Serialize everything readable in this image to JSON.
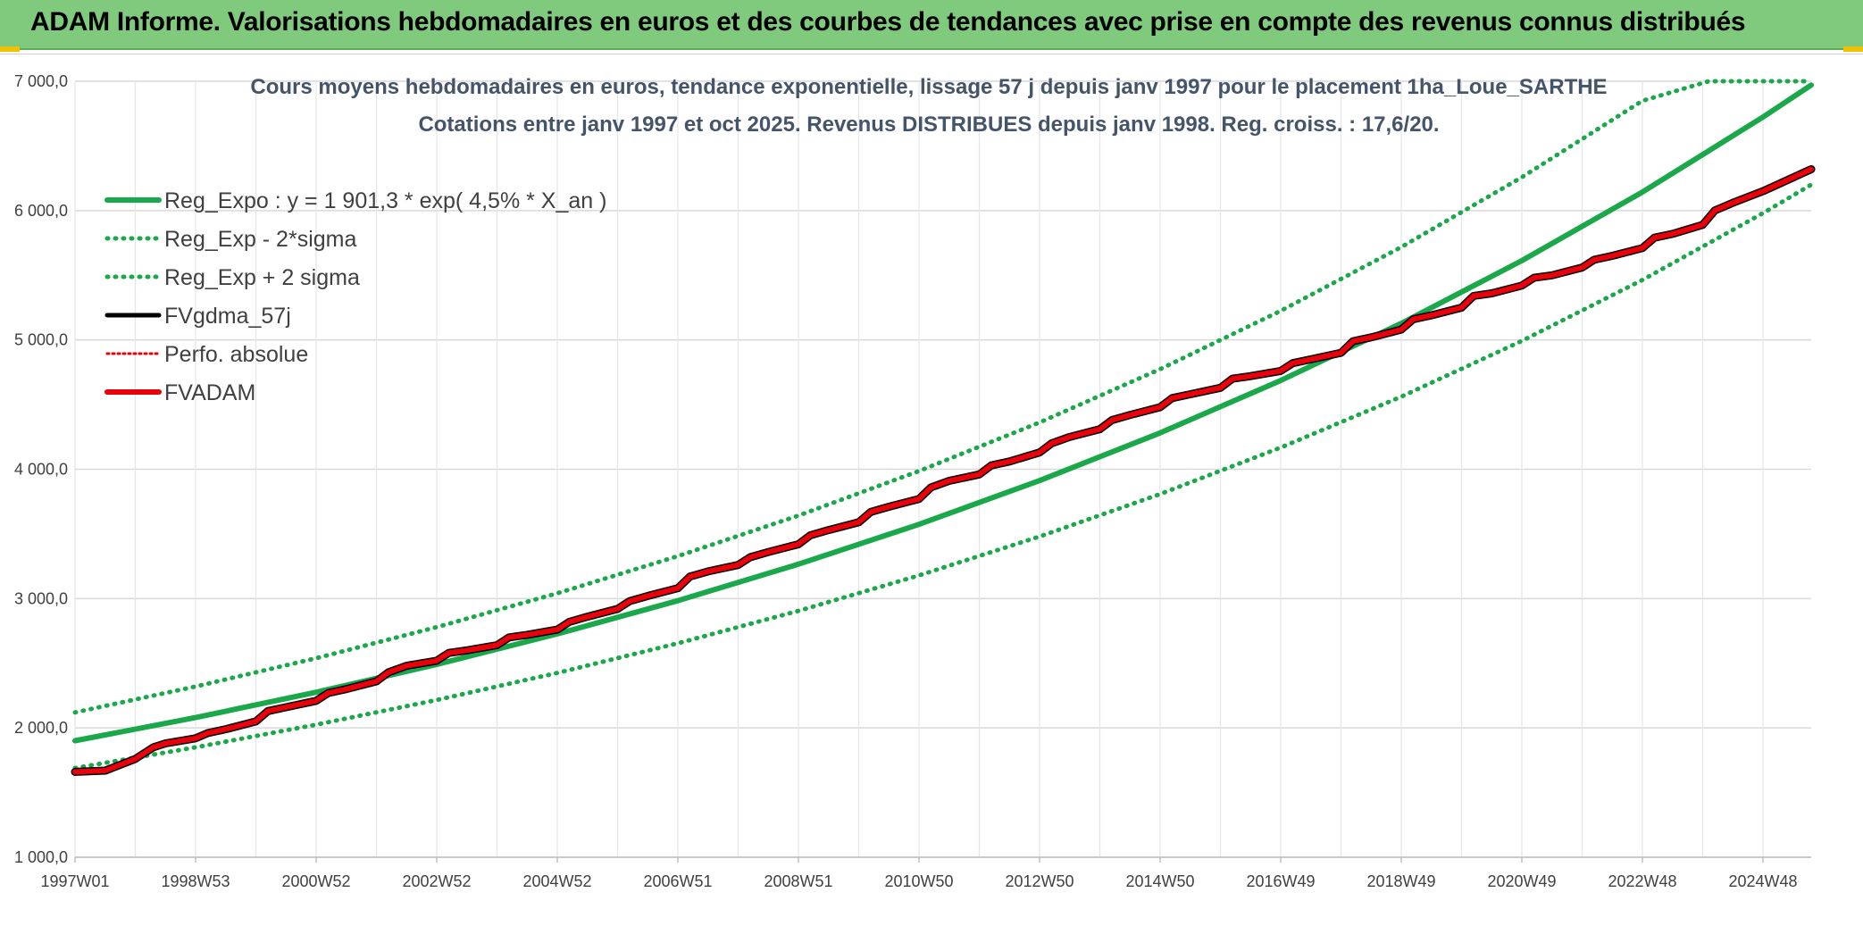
{
  "banner": {
    "title": "ADAM Informe. Valorisations hebdomadaires en euros et des courbes de tendances avec prise en compte des revenus connus distribués"
  },
  "colors": {
    "banner_bg": "#7fca7d",
    "trend_green": "#1aa84a",
    "fv_red": "#e8000b",
    "fv_black": "#000000",
    "grid": "#d9d9d9"
  },
  "chart_data": {
    "type": "line",
    "title_lines": [
      "Cours moyens hebdomadaires en euros, tendance exponentielle, lissage 57 j depuis janv 1997 pour le placement 1ha_Loue_SARTHE",
      "Cotations entre janv 1997 et oct 2025. Revenus DISTRIBUES depuis janv 1998. Reg. croiss. : 17,6/20."
    ],
    "ylim": [
      1000,
      7000
    ],
    "y_ticks": [
      1000,
      2000,
      3000,
      4000,
      5000,
      6000,
      7000
    ],
    "y_tick_labels": [
      "1 000,0",
      "2 000,0",
      "3 000,0",
      "4 000,0",
      "5 000,0",
      "6 000,0",
      "7 000,0"
    ],
    "x_range": [
      1997.0,
      2025.8
    ],
    "x_ticks": [
      1997.0,
      1999.0,
      2001.0,
      2003.0,
      2005.0,
      2007.0,
      2009.0,
      2011.0,
      2013.0,
      2015.0,
      2017.0,
      2019.0,
      2021.0,
      2023.0,
      2025.0
    ],
    "x_tick_labels": [
      "1997W01",
      "1998W53",
      "2000W52",
      "2002W52",
      "2004W52",
      "2006W51",
      "2008W51",
      "2010W50",
      "2012W50",
      "2014W50",
      "2016W49",
      "2018W49",
      "2020W49",
      "2022W48",
      "2024W48"
    ],
    "grid": true,
    "legend_position": "top-left",
    "series": [
      {
        "name": "Reg_Expo : y = 1 901,3 * exp( 4,5% *  X_an )",
        "style": "solid",
        "color": "#1aa84a",
        "x": [
          1997,
          1999,
          2001,
          2003,
          2005,
          2007,
          2009,
          2011,
          2013,
          2015,
          2017,
          2019,
          2021,
          2023,
          2025,
          2025.8
        ],
        "values": [
          1901,
          2080,
          2276,
          2491,
          2727,
          2984,
          3266,
          3574,
          3912,
          4281,
          4686,
          5128,
          5613,
          6143,
          6723,
          6970
        ]
      },
      {
        "name": "Reg_Exp - 2*sigma",
        "style": "dotted",
        "color": "#1aa84a",
        "x": [
          1997,
          1999,
          2001,
          2003,
          2005,
          2007,
          2009,
          2011,
          2013,
          2015,
          2017,
          2019,
          2021,
          2023,
          2025,
          2025.8
        ],
        "values": [
          1690,
          1850,
          2025,
          2216,
          2425,
          2654,
          2905,
          3179,
          3480,
          3808,
          4168,
          4561,
          4992,
          5464,
          5980,
          6200
        ]
      },
      {
        "name": "Reg_Exp + 2 sigma",
        "style": "dotted",
        "color": "#1aa84a",
        "x": [
          1997,
          1999,
          2001,
          2003,
          2005,
          2007,
          2009,
          2011,
          2013,
          2015,
          2017,
          2019,
          2021,
          2023,
          2024.1,
          2025.8
        ],
        "values": [
          2120,
          2320,
          2539,
          2779,
          3041,
          3328,
          3642,
          3986,
          4362,
          4774,
          5225,
          5718,
          6258,
          6849,
          7000,
          7000
        ]
      },
      {
        "name": "FVgdma_57j",
        "style": "solid",
        "color": "#000000",
        "x": [
          1997.0,
          1997.5,
          1998.0,
          1998.3,
          1998.5,
          1999.0,
          1999.2,
          1999.5,
          2000.0,
          2000.2,
          2000.5,
          2001.0,
          2001.2,
          2001.5,
          2002.0,
          2002.2,
          2002.5,
          2003.0,
          2003.2,
          2003.5,
          2004.0,
          2004.2,
          2004.5,
          2005.0,
          2005.2,
          2005.5,
          2006.0,
          2006.2,
          2006.5,
          2007.0,
          2007.2,
          2007.5,
          2008.0,
          2008.2,
          2008.5,
          2009.0,
          2009.2,
          2009.5,
          2010.0,
          2010.2,
          2010.5,
          2011.0,
          2011.2,
          2011.5,
          2012.0,
          2012.2,
          2012.5,
          2013.0,
          2013.2,
          2013.5,
          2014.0,
          2014.2,
          2014.5,
          2015.0,
          2015.2,
          2015.5,
          2016.0,
          2016.2,
          2016.5,
          2017.0,
          2017.2,
          2017.5,
          2018.0,
          2018.2,
          2018.5,
          2019.0,
          2019.2,
          2019.5,
          2020.0,
          2020.2,
          2020.5,
          2021.0,
          2021.2,
          2021.5,
          2022.0,
          2022.2,
          2022.5,
          2023.0,
          2023.2,
          2023.5,
          2024.0,
          2024.2,
          2024.5,
          2025.0,
          2025.8
        ],
        "values": [
          1660,
          1670,
          1760,
          1850,
          1880,
          1920,
          1960,
          1990,
          2050,
          2130,
          2160,
          2210,
          2270,
          2300,
          2360,
          2430,
          2480,
          2520,
          2580,
          2600,
          2640,
          2700,
          2720,
          2760,
          2820,
          2860,
          2920,
          2980,
          3020,
          3080,
          3170,
          3210,
          3260,
          3320,
          3360,
          3420,
          3490,
          3530,
          3590,
          3670,
          3710,
          3770,
          3860,
          3910,
          3960,
          4030,
          4060,
          4130,
          4200,
          4250,
          4310,
          4380,
          4420,
          4480,
          4550,
          4580,
          4630,
          4700,
          4720,
          4760,
          4820,
          4850,
          4900,
          4990,
          5020,
          5080,
          5160,
          5190,
          5250,
          5340,
          5360,
          5420,
          5480,
          5500,
          5560,
          5620,
          5650,
          5710,
          5790,
          5820,
          5890,
          6000,
          6060,
          6150,
          6320
        ]
      },
      {
        "name": "Perfo. absolue",
        "style": "dotted",
        "color": "#e8000b",
        "x": [
          1997.0,
          1997.5,
          1998.0,
          1998.3,
          1998.5,
          1999.0,
          1999.2,
          1999.5,
          2000.0,
          2000.2,
          2000.5,
          2001.0,
          2001.2,
          2001.5,
          2002.0,
          2002.2,
          2002.5,
          2003.0,
          2003.2,
          2003.5,
          2004.0,
          2004.2,
          2004.5,
          2005.0,
          2005.2,
          2005.5,
          2006.0,
          2006.2,
          2006.5,
          2007.0,
          2007.2,
          2007.5,
          2008.0,
          2008.2,
          2008.5,
          2009.0,
          2009.2,
          2009.5,
          2010.0,
          2010.2,
          2010.5,
          2011.0,
          2011.2,
          2011.5,
          2012.0,
          2012.2,
          2012.5,
          2013.0,
          2013.2,
          2013.5,
          2014.0,
          2014.2,
          2014.5,
          2015.0,
          2015.2,
          2015.5,
          2016.0,
          2016.2,
          2016.5,
          2017.0,
          2017.2,
          2017.5,
          2018.0,
          2018.2,
          2018.5,
          2019.0,
          2019.2,
          2019.5,
          2020.0,
          2020.2,
          2020.5,
          2021.0,
          2021.2,
          2021.5,
          2022.0,
          2022.2,
          2022.5,
          2023.0,
          2023.2,
          2023.5,
          2024.0,
          2024.2,
          2024.5,
          2025.0,
          2025.8
        ],
        "values": [
          1660,
          1670,
          1760,
          1850,
          1880,
          1920,
          1960,
          1990,
          2050,
          2130,
          2160,
          2210,
          2270,
          2300,
          2360,
          2430,
          2480,
          2520,
          2580,
          2600,
          2640,
          2700,
          2720,
          2760,
          2820,
          2860,
          2920,
          2980,
          3020,
          3080,
          3170,
          3210,
          3260,
          3320,
          3360,
          3420,
          3490,
          3530,
          3590,
          3670,
          3710,
          3770,
          3860,
          3910,
          3960,
          4030,
          4060,
          4130,
          4200,
          4250,
          4310,
          4380,
          4420,
          4480,
          4550,
          4580,
          4630,
          4700,
          4720,
          4760,
          4820,
          4850,
          4900,
          4990,
          5020,
          5080,
          5160,
          5190,
          5250,
          5340,
          5360,
          5420,
          5480,
          5500,
          5560,
          5620,
          5650,
          5710,
          5790,
          5820,
          5890,
          6000,
          6060,
          6150,
          6320
        ]
      },
      {
        "name": "FVADAM",
        "style": "solid",
        "color": "#e8000b",
        "x": [
          1997.0,
          1997.5,
          1998.0,
          1998.3,
          1998.5,
          1999.0,
          1999.2,
          1999.5,
          2000.0,
          2000.2,
          2000.5,
          2001.0,
          2001.2,
          2001.5,
          2002.0,
          2002.2,
          2002.5,
          2003.0,
          2003.2,
          2003.5,
          2004.0,
          2004.2,
          2004.5,
          2005.0,
          2005.2,
          2005.5,
          2006.0,
          2006.2,
          2006.5,
          2007.0,
          2007.2,
          2007.5,
          2008.0,
          2008.2,
          2008.5,
          2009.0,
          2009.2,
          2009.5,
          2010.0,
          2010.2,
          2010.5,
          2011.0,
          2011.2,
          2011.5,
          2012.0,
          2012.2,
          2012.5,
          2013.0,
          2013.2,
          2013.5,
          2014.0,
          2014.2,
          2014.5,
          2015.0,
          2015.2,
          2015.5,
          2016.0,
          2016.2,
          2016.5,
          2017.0,
          2017.2,
          2017.5,
          2018.0,
          2018.2,
          2018.5,
          2019.0,
          2019.2,
          2019.5,
          2020.0,
          2020.2,
          2020.5,
          2021.0,
          2021.2,
          2021.5,
          2022.0,
          2022.2,
          2022.5,
          2023.0,
          2023.2,
          2023.5,
          2024.0,
          2024.2,
          2024.5,
          2025.0,
          2025.8
        ],
        "values": [
          1660,
          1670,
          1760,
          1850,
          1880,
          1920,
          1960,
          1990,
          2050,
          2130,
          2160,
          2210,
          2270,
          2300,
          2360,
          2430,
          2480,
          2520,
          2580,
          2600,
          2640,
          2700,
          2720,
          2760,
          2820,
          2860,
          2920,
          2980,
          3020,
          3080,
          3170,
          3210,
          3260,
          3320,
          3360,
          3420,
          3490,
          3530,
          3590,
          3670,
          3710,
          3770,
          3860,
          3910,
          3960,
          4030,
          4060,
          4130,
          4200,
          4250,
          4310,
          4380,
          4420,
          4480,
          4550,
          4580,
          4630,
          4700,
          4720,
          4760,
          4820,
          4850,
          4900,
          4990,
          5020,
          5080,
          5160,
          5190,
          5250,
          5340,
          5360,
          5420,
          5480,
          5500,
          5560,
          5620,
          5650,
          5710,
          5790,
          5820,
          5890,
          6000,
          6060,
          6150,
          6320
        ]
      }
    ]
  }
}
